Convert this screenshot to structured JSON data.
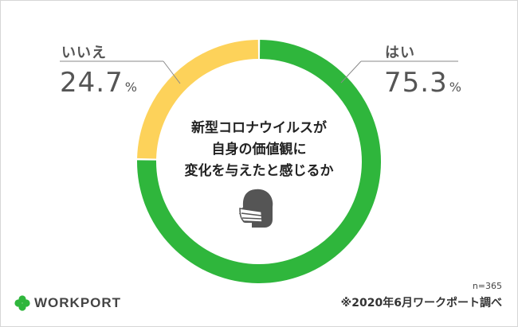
{
  "chart_data": {
    "type": "pie",
    "title": "新型コロナウイルスが\n自身の価値観に\n変化を与えたと感じるか",
    "title_lines": [
      "新型コロナウイルスが",
      "自身の価値観に",
      "変化を与えたと感じるか"
    ],
    "categories": [
      "はい",
      "いいえ"
    ],
    "values": [
      75.3,
      24.7
    ],
    "unit": "%",
    "colors": [
      "#2fb63c",
      "#fdd25a"
    ],
    "donut": true
  },
  "labels": {
    "yes_label": "はい",
    "yes_value": "75.3",
    "no_label": "いいえ",
    "no_value": "24.7",
    "unit": "%"
  },
  "footer": {
    "sample_size": "n=365",
    "source": "※2020年6月ワークポート調べ",
    "logo_text": "WORKPORT"
  },
  "icons": {
    "center": "face-mask-icon",
    "logo": "clover-logo-icon"
  }
}
